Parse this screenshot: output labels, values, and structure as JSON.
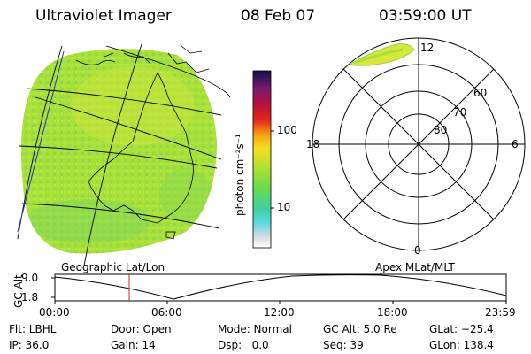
{
  "header": {
    "title": "Ultraviolet Imager",
    "date": "08 Feb 07",
    "time": "03:59:00 UT"
  },
  "colorbar": {
    "label": "photon cm⁻²s⁻¹",
    "ticks": [
      "100",
      "10"
    ]
  },
  "left_panel": {
    "caption": "Geographic Lat/Lon"
  },
  "right_panel": {
    "caption": "Apex MLat/MLT",
    "mlt_labels": {
      "top": "12",
      "bottom": "0",
      "left": "18",
      "right": "6"
    },
    "lat_labels": [
      "60",
      "70",
      "80"
    ]
  },
  "altitude_plot": {
    "ylabel": "GC Alt",
    "yticks": [
      "9.0",
      "1.8"
    ],
    "xticks": [
      "00:00",
      "06:00",
      "12:00",
      "18:00",
      "23:59"
    ]
  },
  "info": {
    "filter": "Flt: LBHL",
    "door": "Door: Open",
    "mode": "Mode: Normal",
    "gc_alt": "GC Alt: 5.0 Re",
    "glat": "GLat: −25.4",
    "ip": "IP: 36.0",
    "gain": "Gain: 14",
    "dsp": "Dsp:   0.0",
    "seq": "Seq: 39",
    "glon": "GLon: 138.4"
  },
  "colors": {
    "field_green": "#a6e03a",
    "highlight_yellow": "#d8e83a",
    "marker_red": "#d02020"
  }
}
